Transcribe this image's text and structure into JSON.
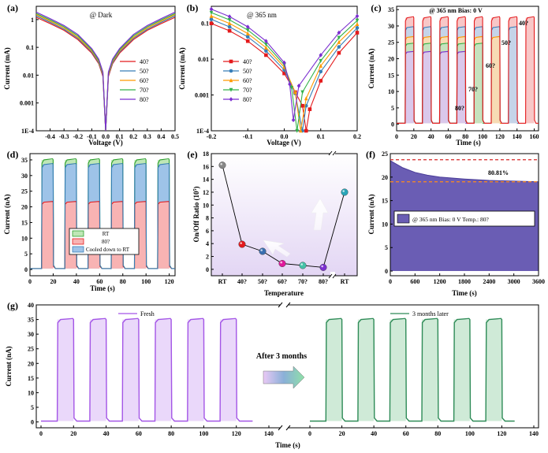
{
  "chart_data": [
    {
      "id": "a",
      "type": "line",
      "panel_label": "(a)",
      "annotation": "@ Dark",
      "xlabel": "Voltage (V)",
      "ylabel": "Current (mA)",
      "xlim": [
        -0.5,
        0.5
      ],
      "ylim": [
        0.0001,
        3
      ],
      "yscale": "log",
      "xticks": [
        -0.4,
        -0.3,
        -0.2,
        -0.1,
        0.0,
        0.1,
        0.2,
        0.3,
        0.4,
        0.5
      ],
      "xtick_labels": [
        "-0.4",
        "-0.3",
        "-0.2",
        "-0.1",
        "0.0",
        "0.1",
        "0.2",
        "0.3",
        "0.4",
        "0.5"
      ],
      "yticks": [
        0.0001,
        0.001,
        0.01,
        0.1,
        1
      ],
      "ytick_labels": [
        "1E-4",
        "0.001",
        "0.01",
        "0.1",
        "1"
      ],
      "legend_position": "center-right",
      "series": [
        {
          "name": "40?",
          "color": "#e41a1c",
          "x": [
            -0.5,
            -0.4,
            -0.3,
            -0.2,
            -0.1,
            -0.05,
            -0.02,
            0.0,
            0.02,
            0.05,
            0.1,
            0.2,
            0.3,
            0.4,
            0.5
          ],
          "y": [
            1.2,
            0.72,
            0.41,
            0.19,
            0.062,
            0.026,
            0.009,
            0.0001,
            0.009,
            0.026,
            0.062,
            0.19,
            0.41,
            0.72,
            1.2
          ]
        },
        {
          "name": "50?",
          "color": "#377eb8",
          "x": [
            -0.5,
            -0.4,
            -0.3,
            -0.2,
            -0.1,
            -0.05,
            -0.02,
            0.0,
            0.02,
            0.05,
            0.1,
            0.2,
            0.3,
            0.4,
            0.5
          ],
          "y": [
            1.35,
            0.8,
            0.45,
            0.21,
            0.068,
            0.028,
            0.01,
            0.0001,
            0.01,
            0.028,
            0.068,
            0.21,
            0.45,
            0.8,
            1.35
          ]
        },
        {
          "name": "60?",
          "color": "#ff9900",
          "x": [
            -0.5,
            -0.4,
            -0.3,
            -0.2,
            -0.1,
            -0.05,
            -0.02,
            0.0,
            0.02,
            0.05,
            0.1,
            0.2,
            0.3,
            0.4,
            0.5
          ],
          "y": [
            1.5,
            0.88,
            0.5,
            0.23,
            0.074,
            0.031,
            0.011,
            0.0001,
            0.011,
            0.031,
            0.074,
            0.23,
            0.5,
            0.88,
            1.5
          ]
        },
        {
          "name": "70?",
          "color": "#33b24a",
          "x": [
            -0.5,
            -0.4,
            -0.3,
            -0.2,
            -0.1,
            -0.05,
            -0.02,
            0.0,
            0.02,
            0.05,
            0.1,
            0.2,
            0.3,
            0.4,
            0.5
          ],
          "y": [
            1.65,
            0.97,
            0.55,
            0.26,
            0.082,
            0.034,
            0.012,
            0.0001,
            0.012,
            0.034,
            0.082,
            0.26,
            0.55,
            0.97,
            1.65
          ]
        },
        {
          "name": "80?",
          "color": "#7b2fd0",
          "x": [
            -0.5,
            -0.4,
            -0.3,
            -0.2,
            -0.1,
            -0.05,
            -0.02,
            0.0,
            0.02,
            0.05,
            0.1,
            0.2,
            0.3,
            0.4,
            0.5
          ],
          "y": [
            1.85,
            1.08,
            0.61,
            0.29,
            0.09,
            0.038,
            0.013,
            0.0001,
            0.013,
            0.038,
            0.09,
            0.29,
            0.61,
            1.08,
            1.85
          ]
        }
      ]
    },
    {
      "id": "b",
      "type": "line",
      "panel_label": "(b)",
      "annotation": "@ 365 nm",
      "xlabel": "Voltage (V)",
      "ylabel": "Current (mA)",
      "xlim": [
        -0.2,
        0.2
      ],
      "ylim": [
        0.0001,
        0.3
      ],
      "yscale": "log",
      "xticks": [
        -0.2,
        -0.1,
        0.0,
        0.1,
        0.2
      ],
      "xtick_labels": [
        "-0.2",
        "-0.1",
        "0.0",
        "0.1",
        "0.2"
      ],
      "yticks": [
        0.0001,
        0.001,
        0.01,
        0.1
      ],
      "ytick_labels": [
        "1E-4",
        "0.001",
        "0.01",
        "0.1"
      ],
      "legend_position": "center-left",
      "series": [
        {
          "name": "40?",
          "color": "#e41a1c",
          "marker": "square",
          "min_x": 0.06,
          "x": [
            -0.2,
            -0.15,
            -0.1,
            -0.05,
            0.0,
            0.03,
            0.05,
            0.06,
            0.07,
            0.1,
            0.15,
            0.2
          ],
          "y": [
            0.1,
            0.062,
            0.032,
            0.013,
            0.004,
            0.0012,
            0.0005,
            0.0001,
            0.0004,
            0.0025,
            0.015,
            0.055
          ]
        },
        {
          "name": "50?",
          "color": "#377eb8",
          "marker": "circle",
          "min_x": 0.05,
          "x": [
            -0.2,
            -0.15,
            -0.1,
            -0.05,
            0.0,
            0.03,
            0.05,
            0.06,
            0.1,
            0.15,
            0.2
          ],
          "y": [
            0.13,
            0.08,
            0.042,
            0.017,
            0.005,
            0.0011,
            0.0001,
            0.0005,
            0.0045,
            0.022,
            0.075
          ]
        },
        {
          "name": "60?",
          "color": "#ff9900",
          "marker": "triangle-up",
          "min_x": 0.045,
          "x": [
            -0.2,
            -0.15,
            -0.1,
            -0.05,
            0.0,
            0.03,
            0.045,
            0.06,
            0.1,
            0.15,
            0.2
          ],
          "y": [
            0.16,
            0.1,
            0.052,
            0.021,
            0.006,
            0.0012,
            0.0001,
            0.0008,
            0.0065,
            0.03,
            0.095
          ]
        },
        {
          "name": "70?",
          "color": "#33b24a",
          "marker": "triangle-down",
          "min_x": 0.035,
          "x": [
            -0.2,
            -0.15,
            -0.1,
            -0.05,
            0.0,
            0.02,
            0.035,
            0.05,
            0.1,
            0.15,
            0.2
          ],
          "y": [
            0.2,
            0.125,
            0.065,
            0.026,
            0.007,
            0.0016,
            0.0001,
            0.0012,
            0.009,
            0.04,
            0.12
          ]
        },
        {
          "name": "80?",
          "color": "#7b2fd0",
          "marker": "diamond",
          "min_x": 0.025,
          "x": [
            -0.2,
            -0.15,
            -0.1,
            -0.05,
            0.0,
            0.015,
            0.025,
            0.04,
            0.1,
            0.15,
            0.2
          ],
          "y": [
            0.25,
            0.155,
            0.08,
            0.032,
            0.008,
            0.002,
            0.0002,
            0.0018,
            0.013,
            0.055,
            0.16
          ]
        }
      ]
    },
    {
      "id": "c",
      "type": "line",
      "panel_label": "(c)",
      "annotation": "@ 365 nm     Bias: 0 V",
      "xlabel": "Time (s)",
      "ylabel": "Current (nA)",
      "ylabel_display": "Current (",
      "ylabel_unit_glyph": "nA",
      "xlim": [
        0,
        165
      ],
      "ylim": [
        -2,
        36
      ],
      "xticks": [
        0,
        20,
        40,
        60,
        80,
        100,
        120,
        140,
        160
      ],
      "yticks": [
        0,
        5,
        10,
        15,
        20,
        25,
        30,
        35
      ],
      "pulse_on": [
        [
          10,
          20
        ],
        [
          30,
          40
        ],
        [
          50,
          60
        ],
        [
          70,
          80
        ],
        [
          90,
          100
        ],
        [
          110,
          120
        ],
        [
          130,
          140
        ],
        [
          150,
          160
        ]
      ],
      "off_level": 0.3,
      "series": [
        {
          "name": "80?",
          "color": "#7b2fd0",
          "on_level": 22,
          "active_until": 80
        },
        {
          "name": "70?",
          "color": "#33b24a",
          "on_level": 24.5,
          "active_until": 100
        },
        {
          "name": "60?",
          "color": "#ff9900",
          "on_level": 26.5,
          "active_until": 120
        },
        {
          "name": "50?",
          "color": "#377eb8",
          "on_level": 29.5,
          "active_until": 140
        },
        {
          "name": "40?",
          "color": "#e41a1c",
          "on_level": 32.5,
          "active_until": 165
        }
      ],
      "labels": [
        "80?",
        "70?",
        "60?",
        "50?",
        "40?"
      ]
    },
    {
      "id": "d",
      "type": "line",
      "panel_label": "(d)",
      "xlabel": "Time (s)",
      "ylabel": "Current (nA)",
      "ylabel_display": "Current (",
      "ylabel_unit_glyph": "nA",
      "xlim": [
        0,
        125
      ],
      "ylim": [
        -2,
        37
      ],
      "xticks": [
        0,
        20,
        40,
        60,
        80,
        100,
        120
      ],
      "yticks": [
        0,
        5,
        10,
        15,
        20,
        25,
        30,
        35
      ],
      "pulse_on": [
        [
          10,
          20
        ],
        [
          30,
          40
        ],
        [
          50,
          60
        ],
        [
          70,
          80
        ],
        [
          90,
          100
        ],
        [
          110,
          120
        ]
      ],
      "off_level": 0.3,
      "legend_position": "bottom-center",
      "series": [
        {
          "name": "RT",
          "color": "#2ca02c",
          "on_level": 35,
          "fill": "#bfe7b6"
        },
        {
          "name": "80?",
          "color": "#e41a1c",
          "on_level": 21.5,
          "fill": "#f8b3b3"
        },
        {
          "name": "Cooled down to RT",
          "color": "#377eb8",
          "on_level": 33.5,
          "fill": "#9ec3e8"
        }
      ]
    },
    {
      "id": "e",
      "type": "scatter",
      "panel_label": "(e)",
      "xlabel": "Temperature",
      "ylabel": "On/Off Ratio (× 10⁵)",
      "ylabel_display": "On/Off Ratio (",
      "ylabel_unit_glyph": "10",
      "ylim": [
        -1,
        18
      ],
      "yticks": [
        0,
        2,
        4,
        6,
        8,
        10,
        12,
        14,
        16,
        18
      ],
      "categories": [
        "RT",
        "40?",
        "50?",
        "60?",
        "70?",
        "80?",
        "RT"
      ],
      "values": [
        16.2,
        3.9,
        2.8,
        0.9,
        0.6,
        0.3,
        12.0
      ],
      "colors": [
        "#888888",
        "#e41a1c",
        "#3a6fb0",
        "#e0199c",
        "#44c2a8",
        "#7b2fd0",
        "#2aa6b8"
      ],
      "axis_break_after_index": 5
    },
    {
      "id": "f",
      "type": "area",
      "panel_label": "(f)",
      "xlabel": "Time (s)",
      "ylabel": "Current (nA)",
      "ylabel_display": "Current (",
      "ylabel_unit_glyph": "nA",
      "xlim": [
        0,
        3600
      ],
      "ylim": [
        -1,
        25
      ],
      "xticks": [
        0,
        600,
        1200,
        1800,
        2400,
        3000,
        3600
      ],
      "yticks": [
        0,
        5,
        10,
        15,
        20,
        25
      ],
      "fill_color": "#6a5db4",
      "x": [
        0,
        100,
        300,
        600,
        900,
        1200,
        1800,
        2400,
        3000,
        3600
      ],
      "y": [
        23.5,
        23.0,
        22.0,
        21.0,
        20.4,
        20.0,
        19.6,
        19.3,
        19.15,
        19.0
      ],
      "ref_max": 23.7,
      "ref_min": 19.0,
      "ref_color": "#d62728",
      "ref_min_color": "#ff8c1a",
      "decay_label": "80.81%",
      "legend_label": "@ 365 nm   Bias: 0 V   Temp.: 80?"
    },
    {
      "id": "g",
      "type": "line",
      "panel_label": "(g)",
      "xlabel": "Time (s)",
      "ylabel": "Current (nA)",
      "ylabel_display": "Current (",
      "ylabel_unit_glyph": "nA",
      "ylim": [
        -2,
        40
      ],
      "yticks": [
        0,
        5,
        10,
        15,
        20,
        25,
        30,
        35,
        40
      ],
      "left_xlim": [
        0,
        140
      ],
      "left_xticks": [
        0,
        20,
        40,
        60,
        80,
        100,
        120,
        140
      ],
      "right_xlim": [
        0,
        140
      ],
      "right_xticks": [
        0,
        20,
        40,
        60,
        80,
        100,
        120,
        140
      ],
      "pulse_on": [
        [
          10,
          20
        ],
        [
          30,
          40
        ],
        [
          50,
          60
        ],
        [
          70,
          80
        ],
        [
          90,
          100
        ],
        [
          110,
          120
        ]
      ],
      "arrow_text": "After 3 months",
      "series": [
        {
          "name": "Fresh",
          "color": "#a355e6",
          "on_level": 35,
          "off_level": 0.3,
          "side": "left",
          "fill": "#d9b8f5"
        },
        {
          "name": "3 months later",
          "color": "#2e8b57",
          "on_level": 35,
          "off_level": 0.3,
          "side": "right",
          "fill": "#a8d8b6"
        }
      ]
    }
  ]
}
